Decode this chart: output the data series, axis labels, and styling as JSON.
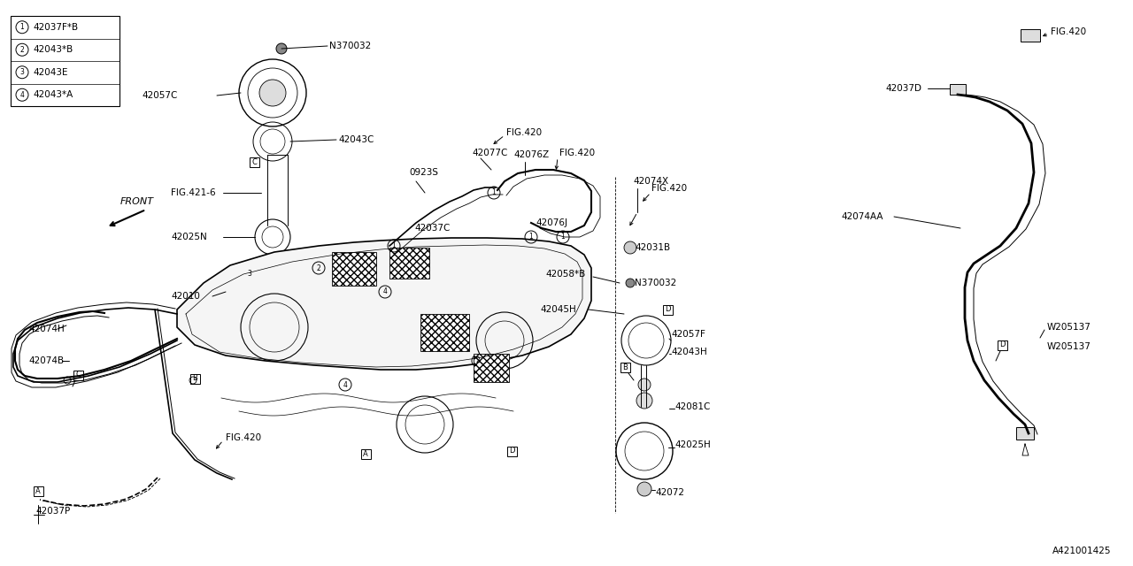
{
  "bg_color": "#ffffff",
  "line_color": "#000000",
  "text_color": "#000000",
  "diagram_id": "A421001425",
  "legend": [
    {
      "num": "1",
      "part": "42037F*B"
    },
    {
      "num": "2",
      "part": "42043*B"
    },
    {
      "num": "3",
      "part": "42043E"
    },
    {
      "num": "4",
      "part": "42043*A"
    }
  ]
}
